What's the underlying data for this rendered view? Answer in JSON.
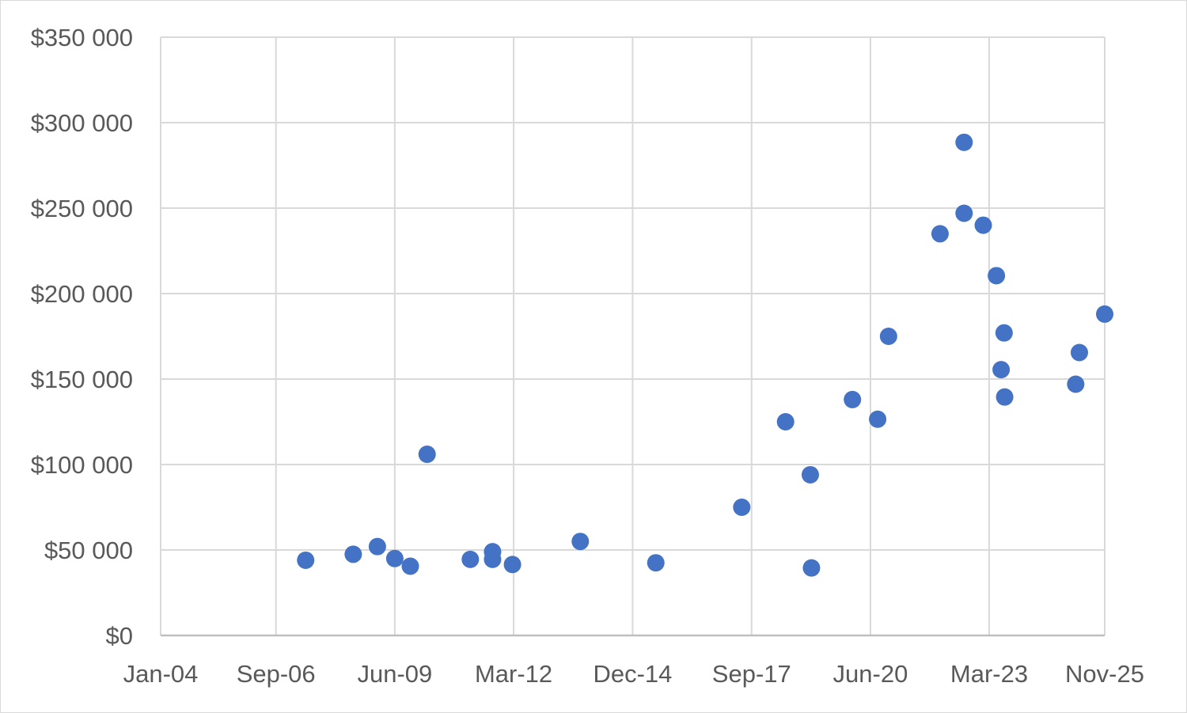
{
  "chart_data": {
    "type": "scatter",
    "title": "",
    "xlabel": "",
    "ylabel": "",
    "x_axis": {
      "type": "date",
      "min": "2004-01-01",
      "max": "2025-11-01",
      "ticks": [
        {
          "date": "2004-01-01",
          "label": "Jan-04"
        },
        {
          "date": "2006-09-01",
          "label": "Sep-06"
        },
        {
          "date": "2009-06-01",
          "label": "Jun-09"
        },
        {
          "date": "2012-03-01",
          "label": "Mar-12"
        },
        {
          "date": "2014-12-01",
          "label": "Dec-14"
        },
        {
          "date": "2017-09-01",
          "label": "Sep-17"
        },
        {
          "date": "2020-06-01",
          "label": "Jun-20"
        },
        {
          "date": "2023-03-01",
          "label": "Mar-23"
        },
        {
          "date": "2025-11-01",
          "label": "Nov-25"
        }
      ]
    },
    "y_axis": {
      "min": 0,
      "max": 350000,
      "ticks": [
        {
          "value": 0,
          "label": "$0"
        },
        {
          "value": 50000,
          "label": "$50 000"
        },
        {
          "value": 100000,
          "label": "$100 000"
        },
        {
          "value": 150000,
          "label": "$150 000"
        },
        {
          "value": 200000,
          "label": "$200 000"
        },
        {
          "value": 250000,
          "label": "$250 000"
        },
        {
          "value": 300000,
          "label": "$300 000"
        },
        {
          "value": 350000,
          "label": "$350 000"
        }
      ]
    },
    "grid": true,
    "legend": "none",
    "marker_color": "#4472C4",
    "series": [
      {
        "points": [
          {
            "x": "2007-05-10",
            "y": 44000
          },
          {
            "x": "2008-06-15",
            "y": 47500
          },
          {
            "x": "2009-01-05",
            "y": 52000
          },
          {
            "x": "2009-06-01",
            "y": 45000
          },
          {
            "x": "2009-10-10",
            "y": 40500
          },
          {
            "x": "2010-03-01",
            "y": 106000
          },
          {
            "x": "2011-03-01",
            "y": 44500
          },
          {
            "x": "2011-09-05",
            "y": 49000
          },
          {
            "x": "2011-09-05",
            "y": 44500
          },
          {
            "x": "2012-02-20",
            "y": 41500
          },
          {
            "x": "2013-09-15",
            "y": 55000
          },
          {
            "x": "2015-06-15",
            "y": 42500
          },
          {
            "x": "2017-06-10",
            "y": 75000
          },
          {
            "x": "2018-06-15",
            "y": 125000
          },
          {
            "x": "2019-01-10",
            "y": 94000
          },
          {
            "x": "2019-01-20",
            "y": 39500
          },
          {
            "x": "2020-01-01",
            "y": 138000
          },
          {
            "x": "2020-08-01",
            "y": 126500
          },
          {
            "x": "2020-11-01",
            "y": 175000
          },
          {
            "x": "2022-01-10",
            "y": 235000
          },
          {
            "x": "2022-08-01",
            "y": 288500
          },
          {
            "x": "2022-08-01",
            "y": 247000
          },
          {
            "x": "2023-01-10",
            "y": 240000
          },
          {
            "x": "2023-05-01",
            "y": 210500
          },
          {
            "x": "2023-06-10",
            "y": 155500
          },
          {
            "x": "2023-07-05",
            "y": 177000
          },
          {
            "x": "2023-07-10",
            "y": 139500
          },
          {
            "x": "2025-03-01",
            "y": 147000
          },
          {
            "x": "2025-04-01",
            "y": 165500
          },
          {
            "x": "2025-11-01",
            "y": 188000
          }
        ]
      }
    ]
  }
}
